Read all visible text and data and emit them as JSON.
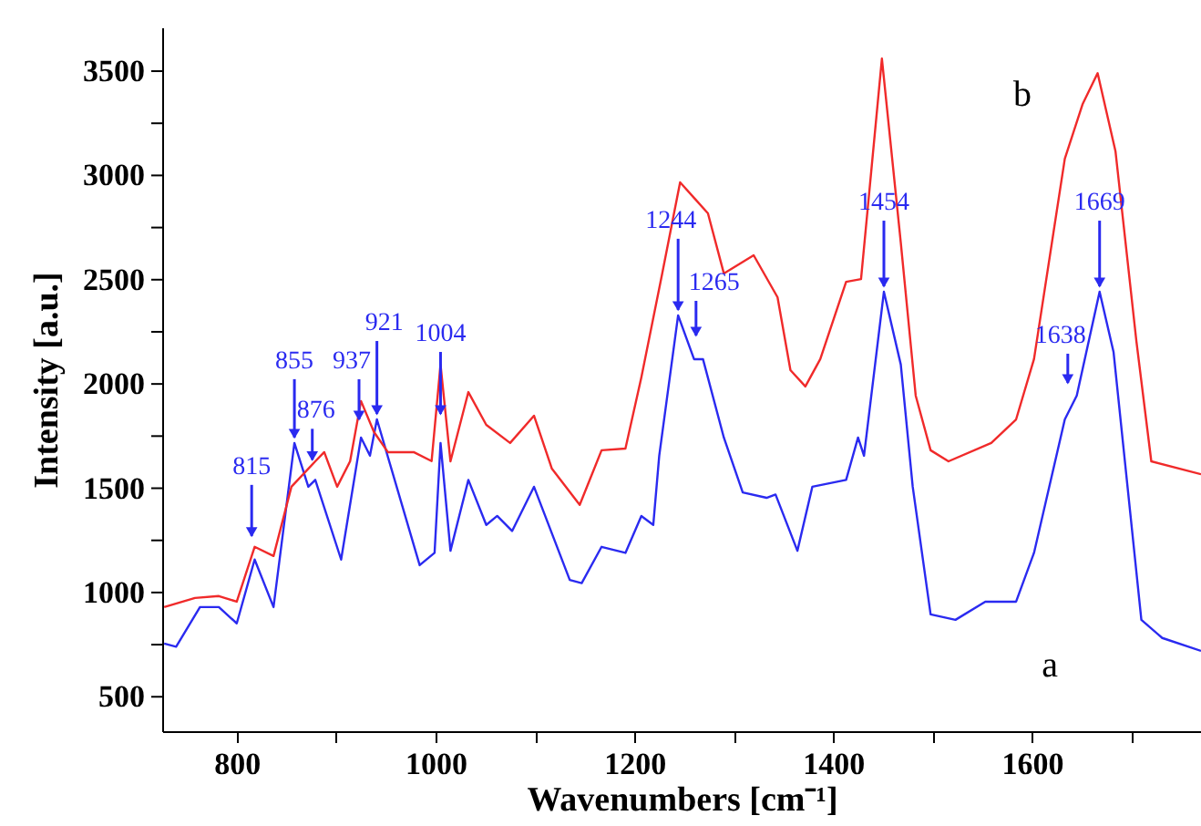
{
  "chart_data": {
    "type": "line",
    "xlabel": "Wavenumbers [cm⁻¹]",
    "ylabel": "Intensity [a.u.]",
    "xlim": [
      725,
      1770
    ],
    "ylim": [
      335,
      3710
    ],
    "xticks": [
      800,
      {
        "value": 900,
        "label": null
      },
      1000,
      {
        "value": 1100,
        "label": null
      },
      1200,
      {
        "value": 1300,
        "label": null
      },
      1400,
      {
        "value": 1500,
        "label": null
      },
      1600,
      {
        "value": 1700,
        "label": null
      }
    ],
    "yticks": [
      500,
      {
        "value": 750,
        "label": null
      },
      1000,
      {
        "value": 1250,
        "label": null
      },
      1500,
      {
        "value": 1750,
        "label": null
      },
      2000,
      {
        "value": 2250,
        "label": null
      },
      2500,
      {
        "value": 2750,
        "label": null
      },
      3000,
      {
        "value": 3250,
        "label": null
      },
      3500
    ],
    "grid": false,
    "marker": "none",
    "line_style": "solid",
    "series": [
      {
        "name": "a",
        "color": "#2a2af0",
        "x": [
          727,
          739,
          763,
          782,
          800,
          818,
          837,
          858,
          872,
          879,
          905,
          925,
          934,
          941,
          984,
          999,
          1005,
          1015,
          1033,
          1051,
          1062,
          1077,
          1099,
          1135,
          1147,
          1167,
          1191,
          1207,
          1219,
          1225,
          1244,
          1260,
          1269,
          1290,
          1309,
          1333,
          1342,
          1364,
          1379,
          1413,
          1425,
          1431,
          1451,
          1468,
          1480,
          1498,
          1523,
          1553,
          1584,
          1602,
          1633,
          1645,
          1668,
          1682,
          1710,
          1731,
          1770
        ],
        "values": [
          755,
          740,
          930,
          930,
          852,
          1158,
          930,
          1717,
          1507,
          1540,
          1158,
          1743,
          1656,
          1830,
          1131,
          1190,
          1717,
          1200,
          1540,
          1324,
          1367,
          1295,
          1507,
          1060,
          1045,
          1219,
          1190,
          1367,
          1324,
          1656,
          2329,
          2119,
          2119,
          1743,
          1480,
          1454,
          1470,
          1200,
          1507,
          1540,
          1743,
          1656,
          2442,
          2093,
          1507,
          895,
          869,
          956,
          956,
          1190,
          1830,
          1944,
          2442,
          2154,
          869,
          782,
          720
        ]
      },
      {
        "name": "b",
        "color": "#f02a2a",
        "x": [
          727,
          758,
          782,
          800,
          818,
          837,
          855,
          879,
          888,
          901,
          914,
          925,
          938,
          952,
          978,
          996,
          1005,
          1015,
          1033,
          1051,
          1075,
          1099,
          1117,
          1145,
          1167,
          1191,
          1207,
          1228,
          1246,
          1274,
          1290,
          1320,
          1344,
          1357,
          1372,
          1387,
          1413,
          1428,
          1449,
          1468,
          1483,
          1498,
          1516,
          1559,
          1584,
          1602,
          1633,
          1651,
          1666,
          1684,
          1705,
          1720,
          1770
        ],
        "values": [
          930,
          974,
          983,
          956,
          1219,
          1175,
          1507,
          1629,
          1673,
          1507,
          1629,
          1918,
          1770,
          1673,
          1673,
          1630,
          2093,
          1629,
          1961,
          1804,
          1717,
          1848,
          1594,
          1420,
          1682,
          1690,
          2031,
          2530,
          2967,
          2818,
          2530,
          2617,
          2416,
          2066,
          1988,
          2119,
          2490,
          2503,
          3560,
          2678,
          1944,
          1682,
          1629,
          1717,
          1830,
          2119,
          3080,
          3343,
          3490,
          3115,
          2206,
          1629,
          1567
        ]
      }
    ],
    "annotations": [
      {
        "text": "815",
        "x": 815,
        "y": 1245
      },
      {
        "text": "855",
        "x": 858,
        "y": 1717
      },
      {
        "text": "876",
        "x": 876,
        "y": 1610
      },
      {
        "text": "937",
        "x": 923,
        "y": 1804
      },
      {
        "text": "921",
        "x": 941,
        "y": 1830
      },
      {
        "text": "1004",
        "x": 1005,
        "y": 1830
      },
      {
        "text": "1244",
        "x": 1244,
        "y": 2329
      },
      {
        "text": "1265",
        "x": 1262,
        "y": 2206
      },
      {
        "text": "1454",
        "x": 1451,
        "y": 2442
      },
      {
        "text": "1638",
        "x": 1636,
        "y": 1979
      },
      {
        "text": "1669",
        "x": 1668,
        "y": 2442
      }
    ]
  }
}
